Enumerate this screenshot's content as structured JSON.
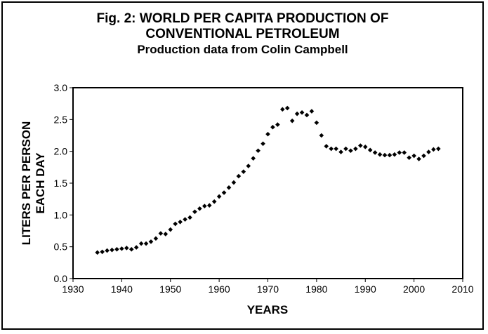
{
  "chart_data": {
    "type": "scatter",
    "title_lines": [
      "Fig. 2: WORLD PER CAPITA PRODUCTION OF",
      "CONVENTIONAL PETROLEUM"
    ],
    "subtitle": "Production data from Colin Campbell",
    "xlabel": "YEARS",
    "ylabel_lines": [
      "LITERS PER PERSON",
      "EACH DAY"
    ],
    "xlim": [
      1930,
      2010
    ],
    "ylim": [
      0.0,
      3.0
    ],
    "x_ticks": [
      1930,
      1940,
      1950,
      1960,
      1970,
      1980,
      1990,
      2000,
      2010
    ],
    "y_ticks": [
      0.0,
      0.5,
      1.0,
      1.5,
      2.0,
      2.5,
      3.0
    ],
    "y_tick_labels": [
      "0.0",
      "0.5",
      "1.0",
      "1.5",
      "2.0",
      "2.5",
      "3.0"
    ],
    "grid": false,
    "marker_color": "#000000",
    "points": [
      [
        1935,
        0.41
      ],
      [
        1936,
        0.42
      ],
      [
        1937,
        0.44
      ],
      [
        1938,
        0.45
      ],
      [
        1939,
        0.46
      ],
      [
        1940,
        0.47
      ],
      [
        1941,
        0.48
      ],
      [
        1942,
        0.46
      ],
      [
        1943,
        0.49
      ],
      [
        1944,
        0.55
      ],
      [
        1945,
        0.55
      ],
      [
        1946,
        0.58
      ],
      [
        1947,
        0.63
      ],
      [
        1948,
        0.71
      ],
      [
        1949,
        0.7
      ],
      [
        1950,
        0.77
      ],
      [
        1951,
        0.86
      ],
      [
        1952,
        0.89
      ],
      [
        1953,
        0.93
      ],
      [
        1954,
        0.96
      ],
      [
        1955,
        1.05
      ],
      [
        1956,
        1.1
      ],
      [
        1957,
        1.14
      ],
      [
        1958,
        1.15
      ],
      [
        1959,
        1.21
      ],
      [
        1960,
        1.29
      ],
      [
        1961,
        1.35
      ],
      [
        1962,
        1.43
      ],
      [
        1963,
        1.51
      ],
      [
        1964,
        1.61
      ],
      [
        1965,
        1.68
      ],
      [
        1966,
        1.77
      ],
      [
        1967,
        1.89
      ],
      [
        1968,
        2.01
      ],
      [
        1969,
        2.12
      ],
      [
        1970,
        2.27
      ],
      [
        1971,
        2.38
      ],
      [
        1972,
        2.42
      ],
      [
        1973,
        2.66
      ],
      [
        1974,
        2.68
      ],
      [
        1975,
        2.48
      ],
      [
        1976,
        2.59
      ],
      [
        1977,
        2.61
      ],
      [
        1978,
        2.57
      ],
      [
        1979,
        2.63
      ],
      [
        1980,
        2.45
      ],
      [
        1981,
        2.25
      ],
      [
        1982,
        2.08
      ],
      [
        1983,
        2.04
      ],
      [
        1984,
        2.04
      ],
      [
        1985,
        1.99
      ],
      [
        1986,
        2.04
      ],
      [
        1987,
        2.01
      ],
      [
        1988,
        2.04
      ],
      [
        1989,
        2.09
      ],
      [
        1990,
        2.07
      ],
      [
        1991,
        2.02
      ],
      [
        1992,
        1.98
      ],
      [
        1993,
        1.95
      ],
      [
        1994,
        1.94
      ],
      [
        1995,
        1.94
      ],
      [
        1996,
        1.95
      ],
      [
        1997,
        1.98
      ],
      [
        1998,
        1.98
      ],
      [
        1999,
        1.9
      ],
      [
        2000,
        1.93
      ],
      [
        2001,
        1.88
      ],
      [
        2002,
        1.93
      ],
      [
        2003,
        1.99
      ],
      [
        2004,
        2.03
      ],
      [
        2005,
        2.04
      ]
    ]
  }
}
